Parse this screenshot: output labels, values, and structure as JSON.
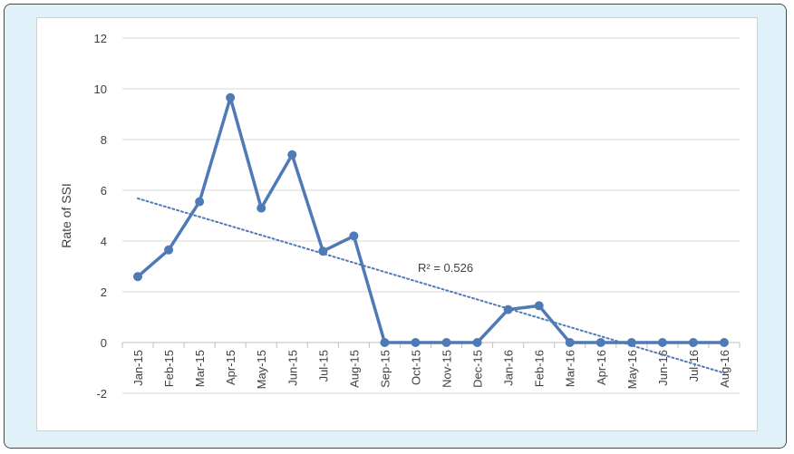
{
  "chart_data": {
    "type": "line",
    "title": "",
    "xlabel": "",
    "ylabel": "Rate of SSI",
    "ylim": [
      -2,
      12
    ],
    "yticks": [
      -2,
      0,
      2,
      4,
      6,
      8,
      10,
      12
    ],
    "grid": true,
    "legend": "none",
    "categories": [
      "Jan-15",
      "Feb-15",
      "Mar-15",
      "Apr-15",
      "May-15",
      "Jun-15",
      "Jul-15",
      "Aug-15",
      "Sep-15",
      "Oct-15",
      "Nov-15",
      "Dec-15",
      "Jan-16",
      "Feb-16",
      "Mar-16",
      "Apr-16",
      "May-16",
      "Jun-16",
      "Jul-16",
      "Aug-16"
    ],
    "series": [
      {
        "values": [
          2.6,
          3.65,
          5.55,
          9.65,
          5.3,
          7.4,
          3.6,
          4.2,
          0,
          0,
          0,
          0,
          1.3,
          1.45,
          0,
          0,
          0,
          0,
          0,
          0
        ],
        "color": "#4e7ab5"
      }
    ],
    "trendline": {
      "type": "linear",
      "start": 5.68,
      "end": -1.2,
      "color": "#4e7ab5",
      "style": "dotted",
      "label": "R² = 0.526"
    },
    "colors": {
      "frame_bg": "#e1f1fa",
      "frame_border": "#4a4a4a",
      "grid": "#d9d9d9",
      "axis": "#bfbfbf",
      "text": "#404040"
    }
  }
}
